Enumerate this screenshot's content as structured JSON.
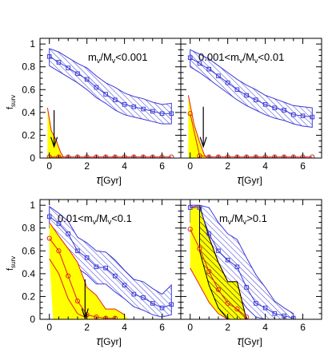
{
  "chart_data": {
    "type": "line",
    "ylabel": "f",
    "ylabel_sub": "surv",
    "xlabel": "τ",
    "xlabel_unit": "[Gyr]",
    "xlim": [
      -0.5,
      7
    ],
    "ylim": [
      0,
      1.05
    ],
    "x_ticks": [
      "0",
      "2",
      "4",
      "6"
    ],
    "y_ticks": [
      "0",
      "0.2",
      "0.4",
      "0.6",
      "0.8",
      "1"
    ],
    "colors": {
      "blue": "#3a3ad8",
      "red": "#e02020",
      "yellow": "#ffff00",
      "black": "#000000"
    },
    "panels": [
      {
        "label": "m_v/M_v<0.001",
        "label_parts": [
          {
            "t": "m",
            "s": ""
          },
          {
            "t": "v",
            "s": "sub"
          },
          {
            "t": "/M",
            "s": ""
          },
          {
            "t": "v",
            "s": "sub"
          },
          {
            "t": "<0.001",
            "s": ""
          }
        ],
        "blue": {
          "x": [
            0,
            0.5,
            1,
            1.5,
            2,
            2.5,
            3,
            3.5,
            4,
            4.5,
            5,
            5.5,
            6,
            6.5
          ],
          "y": [
            0.89,
            0.84,
            0.79,
            0.74,
            0.69,
            0.62,
            0.56,
            0.51,
            0.47,
            0.45,
            0.43,
            0.41,
            0.39,
            0.39
          ],
          "upper": [
            0.96,
            0.93,
            0.88,
            0.83,
            0.79,
            0.72,
            0.66,
            0.62,
            0.57,
            0.54,
            0.52,
            0.49,
            0.47,
            0.48
          ],
          "lower": [
            0.81,
            0.76,
            0.71,
            0.66,
            0.6,
            0.53,
            0.48,
            0.42,
            0.38,
            0.36,
            0.34,
            0.32,
            0.3,
            0.3
          ]
        },
        "red": {
          "x": [
            0,
            0.5,
            1,
            1.5,
            2,
            2.5,
            3,
            3.5,
            4,
            4.5,
            5,
            5.5,
            6,
            6.5
          ],
          "y": [
            0.01,
            0.01,
            0.01,
            0.01,
            0.01,
            0.01,
            0.01,
            0.01,
            0.01,
            0.01,
            0.01,
            0.01,
            0.01,
            0.01
          ]
        },
        "yellow": [
          [
            -0.1,
            0
          ],
          [
            -0.1,
            0.44
          ],
          [
            0.1,
            0.24
          ],
          [
            0.35,
            0.16
          ],
          [
            0.6,
            0.05
          ],
          [
            0.75,
            0
          ],
          [
            0.75,
            0
          ]
        ],
        "red_edge": [
          [
            -0.1,
            0.44
          ],
          [
            0.1,
            0.24
          ],
          [
            0.35,
            0.16
          ],
          [
            0.6,
            0.05
          ],
          [
            0.75,
            0.01
          ]
        ],
        "hatch_yellow": null,
        "arrow": {
          "x": 0.25,
          "y_top": 0.42,
          "y_bottom": 0.1
        }
      },
      {
        "label": "0.001<m_v/M_v<0.01",
        "label_parts": [
          {
            "t": "0.001<m",
            "s": ""
          },
          {
            "t": "v",
            "s": "sub"
          },
          {
            "t": "/M",
            "s": ""
          },
          {
            "t": "v",
            "s": "sub"
          },
          {
            "t": "<0.01",
            "s": ""
          }
        ],
        "blue": {
          "x": [
            0,
            0.5,
            1,
            1.5,
            2,
            2.5,
            3,
            3.5,
            4,
            4.5,
            5,
            5.5,
            6,
            6.5
          ],
          "y": [
            0.88,
            0.83,
            0.78,
            0.72,
            0.66,
            0.6,
            0.55,
            0.51,
            0.47,
            0.44,
            0.42,
            0.38,
            0.37,
            0.36
          ],
          "upper": [
            0.95,
            0.91,
            0.87,
            0.81,
            0.75,
            0.69,
            0.64,
            0.6,
            0.55,
            0.52,
            0.49,
            0.46,
            0.45,
            0.44
          ],
          "lower": [
            0.8,
            0.75,
            0.69,
            0.63,
            0.57,
            0.51,
            0.46,
            0.42,
            0.38,
            0.35,
            0.33,
            0.3,
            0.28,
            0.27
          ]
        },
        "red": {
          "x": [
            0,
            0.5,
            1,
            1.5,
            2,
            2.5,
            3,
            3.5,
            4,
            4.5,
            5,
            5.5,
            6,
            6.5
          ],
          "y": [
            0.39,
            0.02,
            0.01,
            0.01,
            0.01,
            0.01,
            0.01,
            0.01,
            0.01,
            0.01,
            0.01,
            0.01,
            0.01,
            0.01
          ]
        },
        "yellow": [
          [
            -0.1,
            0
          ],
          [
            -0.1,
            0.55
          ],
          [
            0.2,
            0.3
          ],
          [
            0.5,
            0.14
          ],
          [
            0.75,
            0.03
          ],
          [
            0.85,
            0
          ]
        ],
        "red_edge": [
          [
            -0.1,
            0.55
          ],
          [
            0.2,
            0.3
          ],
          [
            0.5,
            0.14
          ],
          [
            0.75,
            0.03
          ],
          [
            0.85,
            0.01
          ]
        ],
        "hatch_yellow": null,
        "arrow": {
          "x": 0.7,
          "y_top": 0.45,
          "y_bottom": 0.1
        }
      },
      {
        "label": "0.01<m_v/M_v<0.1",
        "label_parts": [
          {
            "t": "0.01<m",
            "s": ""
          },
          {
            "t": "v",
            "s": "sub"
          },
          {
            "t": "/M",
            "s": ""
          },
          {
            "t": "v",
            "s": "sub"
          },
          {
            "t": "<0.1",
            "s": ""
          }
        ],
        "blue": {
          "x": [
            0,
            0.5,
            1,
            1.5,
            2,
            2.5,
            3,
            3.5,
            4,
            4.5,
            5,
            5.5,
            6,
            6.5
          ],
          "y": [
            0.9,
            0.84,
            0.75,
            0.6,
            0.54,
            0.46,
            0.45,
            0.38,
            0.3,
            0.22,
            0.19,
            0.14,
            0.1,
            0.13
          ],
          "upper": [
            0.99,
            0.93,
            0.86,
            0.72,
            0.67,
            0.6,
            0.59,
            0.52,
            0.43,
            0.35,
            0.33,
            0.27,
            0.22,
            0.3
          ],
          "lower": [
            0.8,
            0.72,
            0.62,
            0.45,
            0.39,
            0.31,
            0.31,
            0.24,
            0.18,
            0.11,
            0.08,
            0.04,
            0.02,
            0.04
          ]
        },
        "red": {
          "x": [
            0,
            0.5,
            1,
            1.5,
            2,
            2.5,
            3,
            3.5
          ],
          "y": [
            0.71,
            0.6,
            0.38,
            0.16,
            0.04,
            0.02,
            0.01,
            0.01
          ]
        },
        "yellow": [
          [
            0,
            0.85
          ],
          [
            0.5,
            0.73
          ],
          [
            1,
            0.62
          ],
          [
            1.5,
            0.5
          ],
          [
            2,
            0.28
          ],
          [
            2.5,
            0.21
          ],
          [
            3,
            0.09
          ],
          [
            3.5,
            0.09
          ],
          [
            4,
            0.04
          ],
          [
            4.2,
            0
          ],
          [
            0.2,
            0
          ],
          [
            0,
            0.53
          ]
        ],
        "red_edge": [
          [
            0,
            0.85
          ],
          [
            0.5,
            0.73
          ],
          [
            1,
            0.62
          ],
          [
            1.5,
            0.5
          ],
          [
            2,
            0.28
          ],
          [
            2.5,
            0.21
          ],
          [
            3,
            0.09
          ],
          [
            3.5,
            0.09
          ],
          [
            4,
            0.04
          ]
        ],
        "red_edge_lower": [
          [
            0,
            0.53
          ],
          [
            0.5,
            0.4
          ],
          [
            1,
            0.18
          ],
          [
            1.5,
            0.05
          ],
          [
            2,
            0.01
          ]
        ],
        "hatch_yellow": null,
        "arrow": {
          "x": 1.9,
          "y_top": 0.35,
          "y_bottom": 0.01
        }
      },
      {
        "label": "m_v/M_v>0.1",
        "label_parts": [
          {
            "t": "m",
            "s": ""
          },
          {
            "t": "v",
            "s": "sub"
          },
          {
            "t": "/M",
            "s": ""
          },
          {
            "t": "v",
            "s": "sub"
          },
          {
            "t": ">0.1",
            "s": ""
          }
        ],
        "blue": {
          "x": [
            0,
            0.5,
            1,
            1.5,
            2,
            2.5,
            3,
            3.5,
            4,
            4.5,
            5,
            5.5
          ],
          "y": [
            0.98,
            0.98,
            0.75,
            0.6,
            0.52,
            0.46,
            0.28,
            0.14,
            0.1,
            0.05,
            0.03,
            0.01
          ],
          "upper": [
            1.0,
            1.0,
            0.98,
            0.85,
            0.75,
            0.7,
            0.54,
            0.39,
            0.28,
            0.16,
            0.1,
            0.05
          ],
          "lower": [
            0.85,
            0.78,
            0.55,
            0.35,
            0.3,
            0.22,
            0.1,
            0.02,
            0.0,
            0.0,
            0.0,
            0.0
          ]
        },
        "red": {
          "x": [
            0,
            0.5,
            1,
            1.5,
            2,
            2.5,
            3
          ],
          "y": [
            0.79,
            0.62,
            0.42,
            0.26,
            0.14,
            0.09,
            0.02
          ]
        },
        "yellow": [
          [
            0,
            0.98
          ],
          [
            0.5,
            1.0
          ],
          [
            1,
            0.72
          ],
          [
            1.5,
            0.5
          ],
          [
            2,
            0.33
          ],
          [
            2.5,
            0.33
          ],
          [
            3,
            0.0
          ],
          [
            2.5,
            0.0
          ],
          [
            2,
            0.0
          ],
          [
            1.5,
            0.05
          ],
          [
            1,
            0.15
          ],
          [
            0.5,
            0.3
          ],
          [
            0,
            0.45
          ]
        ],
        "red_edge": [
          [
            0,
            0.98
          ],
          [
            0.5,
            1.0
          ],
          [
            1,
            0.72
          ],
          [
            1.5,
            0.5
          ],
          [
            2,
            0.33
          ],
          [
            2.5,
            0.33
          ],
          [
            3,
            0.0
          ]
        ],
        "red_edge_lower": [
          [
            0,
            0.45
          ],
          [
            0.5,
            0.3
          ],
          [
            1,
            0.15
          ],
          [
            1.5,
            0.05
          ],
          [
            2,
            0.0
          ]
        ],
        "hatch_yellow": [
          [
            0.5,
            1.0
          ],
          [
            1,
            0.72
          ],
          [
            1.5,
            0.5
          ],
          [
            2,
            0.33
          ],
          [
            2.5,
            0.33
          ],
          [
            3,
            0.0
          ],
          [
            2,
            0.0
          ],
          [
            1.5,
            0.1
          ],
          [
            1,
            0.3
          ],
          [
            0.5,
            0.6
          ]
        ],
        "arrow": null
      }
    ]
  }
}
